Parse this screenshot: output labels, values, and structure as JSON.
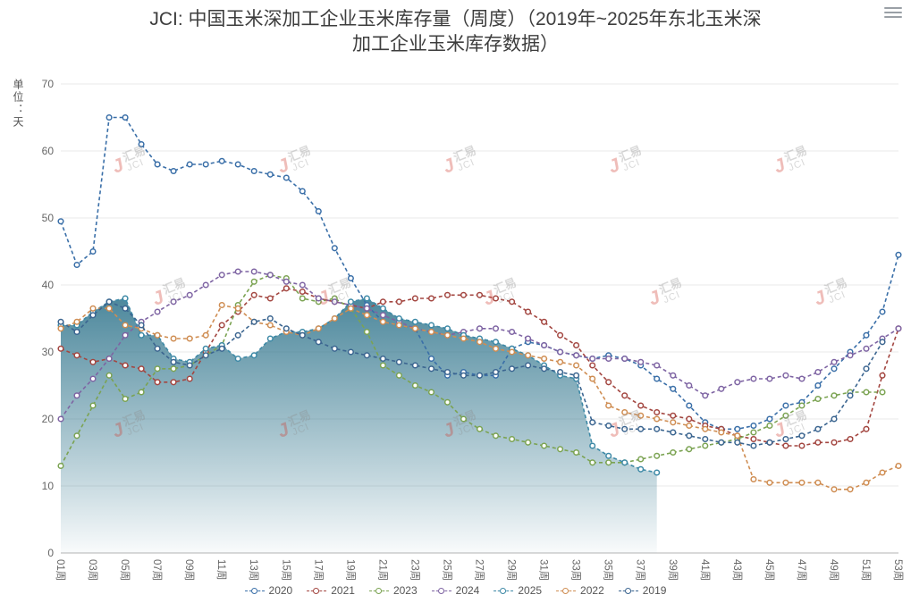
{
  "header": {
    "title_line1": "JCI: 中国玉米深加工企业玉米库存量（周度）（2019年~2025年东北玉米深",
    "title_line2": "加工企业玉米库存数据）",
    "menu_icon": "hamburger-menu"
  },
  "y_axis": {
    "unit_label": "单位：天"
  },
  "watermark": {
    "logo_letter": "J",
    "text_cn": "汇易",
    "text_en": "JCI",
    "logo_color": "#cf3b2f"
  },
  "chart_data": {
    "type": "line",
    "title": "JCI: 中国玉米深加工企业玉米库存量（周度）（2019年~2025年东北玉米深加工企业玉米库存数据）",
    "ylabel": "单位：天",
    "ylim": [
      0,
      70
    ],
    "yticks": [
      0,
      10,
      20,
      30,
      40,
      50,
      60,
      70
    ],
    "x_label_interval": 2,
    "grid": true,
    "legend_position": "bottom",
    "line_style": "dashed-with-circle-markers",
    "categories": [
      "01周",
      "02周",
      "03周",
      "04周",
      "05周",
      "06周",
      "07周",
      "08周",
      "09周",
      "10周",
      "11周",
      "12周",
      "13周",
      "14周",
      "15周",
      "16周",
      "17周",
      "18周",
      "19周",
      "20周",
      "21周",
      "22周",
      "23周",
      "24周",
      "25周",
      "26周",
      "27周",
      "28周",
      "29周",
      "30周",
      "31周",
      "32周",
      "33周",
      "34周",
      "35周",
      "36周",
      "37周",
      "38周",
      "39周",
      "40周",
      "41周",
      "42周",
      "43周",
      "44周",
      "45周",
      "46周",
      "47周",
      "48周",
      "49周",
      "50周",
      "51周",
      "52周",
      "53周"
    ],
    "series": [
      {
        "name": "2020",
        "color": "#3a6fa8",
        "values": [
          49.5,
          43,
          45,
          65,
          65,
          61,
          58,
          57,
          58,
          58,
          58.5,
          58,
          57,
          56.5,
          56,
          54,
          51,
          45.5,
          41,
          37,
          34.5,
          34,
          33.5,
          29,
          26.5,
          27,
          26.5,
          26.5,
          30.5,
          31.5,
          31,
          30,
          29.5,
          29,
          29.5,
          29,
          28,
          26,
          24.5,
          22,
          19.5,
          18.5,
          18.5,
          19,
          20,
          22,
          22.5,
          25,
          27.5,
          30,
          32.5,
          36,
          44.5
        ]
      },
      {
        "name": "2021",
        "color": "#a34640",
        "values": [
          30.5,
          29.5,
          28.5,
          29,
          28,
          27.5,
          25.5,
          25.5,
          26,
          30,
          34,
          36,
          38.5,
          38,
          39.5,
          39,
          38,
          37.5,
          37,
          36.5,
          37.5,
          37.5,
          38,
          38,
          38.5,
          38.5,
          38.5,
          38,
          37.5,
          36,
          34.5,
          32.5,
          31,
          28,
          25.5,
          23.5,
          22,
          21,
          20.5,
          20,
          19,
          18.5,
          17.5,
          17,
          16.5,
          16,
          16,
          16.5,
          16.5,
          17,
          18.5,
          26.5,
          33.5
        ]
      },
      {
        "name": "2023",
        "color": "#7ba352",
        "values": [
          13,
          17.5,
          22,
          26.5,
          23,
          24,
          27.5,
          27.5,
          28,
          29.5,
          31,
          37,
          40.5,
          41.5,
          41,
          38,
          37.5,
          38,
          36.5,
          33,
          28,
          26.5,
          25,
          24,
          22.5,
          20,
          18.5,
          17.5,
          17,
          16.5,
          16,
          15.5,
          15,
          13.5,
          13.5,
          13.5,
          14,
          14.5,
          15,
          15.5,
          16,
          16.5,
          17,
          18,
          19,
          20.5,
          22,
          23,
          23.5,
          24,
          24,
          24,
          null
        ]
      },
      {
        "name": "2024",
        "color": "#7e64a3",
        "values": [
          20,
          23.5,
          26,
          29,
          32.5,
          34.5,
          36,
          37.5,
          38.5,
          40,
          41.5,
          42,
          42,
          41.5,
          40.5,
          40,
          38,
          37.5,
          37,
          36.5,
          35.5,
          34.5,
          33.5,
          33,
          32.5,
          33,
          33.5,
          33.5,
          33,
          32,
          31,
          30,
          29.5,
          29,
          29,
          29,
          28.5,
          28,
          26.5,
          25,
          23.5,
          24.5,
          25.5,
          26,
          26,
          26.5,
          26,
          27,
          28.5,
          29.5,
          30.5,
          32,
          33.5
        ]
      },
      {
        "name": "2025",
        "color": "#3d89a6",
        "area": true,
        "area_color": "#35788f",
        "values": [
          34,
          34,
          36,
          37.5,
          38,
          32.5,
          32.5,
          29,
          28.5,
          30.5,
          31,
          29,
          29.5,
          32,
          33,
          33,
          33.5,
          35,
          37.5,
          38,
          36.5,
          35,
          34.5,
          34,
          33.5,
          32.5,
          32,
          31.5,
          30.5,
          29.5,
          28,
          26.5,
          26,
          16,
          14.5,
          13.5,
          12.5,
          12
        ]
      },
      {
        "name": "2022",
        "color": "#cf8d52",
        "values": [
          33.5,
          34.5,
          36.5,
          36.5,
          34,
          33.5,
          32.5,
          32,
          32,
          32.5,
          37,
          36.5,
          34.5,
          34,
          33,
          32.5,
          33.5,
          35,
          36.5,
          35.5,
          34.5,
          34,
          33.5,
          33,
          32.5,
          32,
          31.5,
          30.5,
          30,
          29.5,
          29,
          28.5,
          28,
          26,
          22,
          21,
          20.5,
          20,
          19.5,
          19,
          18.5,
          18,
          17.5,
          11,
          10.5,
          10.5,
          10.5,
          10.5,
          9.5,
          9.5,
          10.5,
          12,
          13
        ]
      },
      {
        "name": "2019",
        "color": "#3b6590",
        "values": [
          34.5,
          33,
          35.5,
          37.5,
          36.5,
          34,
          30.5,
          28.5,
          28,
          29.5,
          30.5,
          32.5,
          34.5,
          35,
          33.5,
          32.5,
          31.5,
          30.5,
          30,
          29.5,
          29,
          28.5,
          28,
          27.5,
          27,
          26.5,
          26.5,
          27,
          27.5,
          28,
          27.5,
          27,
          26.5,
          19.5,
          19,
          18.5,
          18.5,
          18.5,
          18,
          17.5,
          17,
          16.5,
          16.5,
          16,
          16.5,
          17,
          17.5,
          18.5,
          20,
          23.5,
          27.5,
          31.5,
          null
        ]
      }
    ]
  }
}
